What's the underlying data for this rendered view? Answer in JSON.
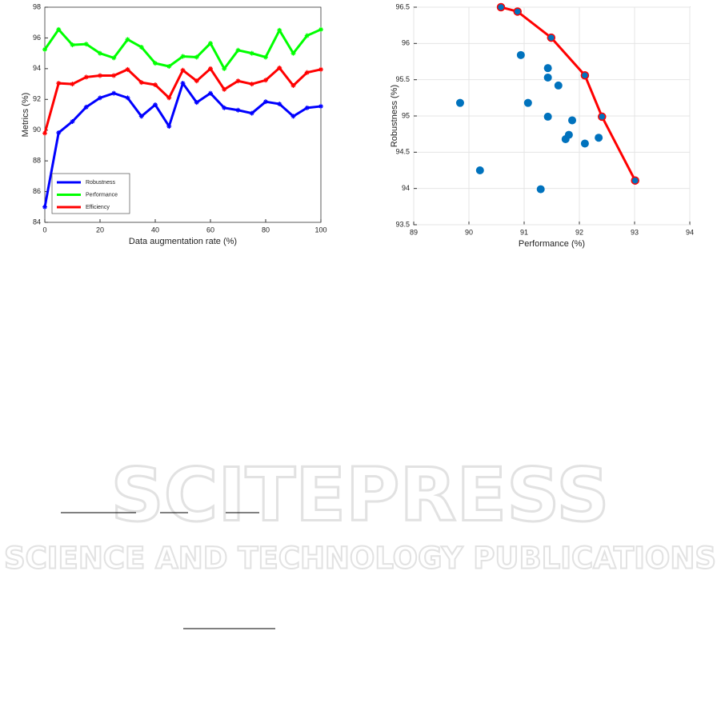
{
  "chart_data": [
    {
      "type": "line",
      "x": [
        0,
        5,
        10,
        15,
        20,
        25,
        30,
        35,
        40,
        45,
        50,
        55,
        60,
        65,
        70,
        75,
        80,
        85,
        90,
        95,
        100
      ],
      "series": [
        {
          "name": "Robustness",
          "color": "#0000ff",
          "values": [
            85.0,
            89.83,
            90.56,
            91.5,
            92.1,
            92.4,
            92.1,
            90.9,
            91.65,
            90.25,
            93.05,
            91.8,
            92.4,
            91.45,
            91.3,
            91.1,
            91.85,
            91.7,
            90.9,
            91.45,
            91.55
          ]
        },
        {
          "name": "Performance",
          "color": "#00ff00",
          "values": [
            95.25,
            96.55,
            95.55,
            95.6,
            95.0,
            94.7,
            95.9,
            95.4,
            94.35,
            94.15,
            94.8,
            94.75,
            95.65,
            94.0,
            95.2,
            95.0,
            94.75,
            96.5,
            95.0,
            96.15,
            96.55
          ]
        },
        {
          "name": "Efficiency",
          "color": "#ff0000",
          "values": [
            89.8,
            93.05,
            93.0,
            93.45,
            93.55,
            93.55,
            93.95,
            93.1,
            92.95,
            92.1,
            93.9,
            93.2,
            94.0,
            92.65,
            93.2,
            93.0,
            93.25,
            94.05,
            92.9,
            93.75,
            93.95
          ]
        }
      ],
      "xlim": [
        0,
        100
      ],
      "xticks": [
        0,
        20,
        40,
        60,
        80,
        100
      ],
      "ylim": [
        84,
        98
      ],
      "yticks": [
        84,
        86,
        88,
        90,
        92,
        94,
        96,
        98
      ],
      "xlabel": "Data augmentation rate (%)",
      "ylabel": "Metrics (%)",
      "legend": "lower left",
      "grid": false
    },
    {
      "type": "scatter",
      "x": [
        90.58,
        90.88,
        91.49,
        90.94,
        91.43,
        91.43,
        91.62,
        89.84,
        91.07,
        91.43,
        92.1,
        92.41,
        91.87,
        91.81,
        91.75,
        92.1,
        92.35,
        90.2,
        91.3,
        93.01
      ],
      "y": [
        96.5,
        96.44,
        96.08,
        95.84,
        95.66,
        95.53,
        95.42,
        95.18,
        95.18,
        94.99,
        95.56,
        94.99,
        94.94,
        94.74,
        94.68,
        94.62,
        94.7,
        94.25,
        93.99,
        94.11
      ],
      "color": "#0072bd",
      "line": {
        "x": [
          90.58,
          90.88,
          91.49,
          92.1,
          92.41,
          93.01
        ],
        "y": [
          96.5,
          96.44,
          96.08,
          95.56,
          94.99,
          94.11
        ],
        "color": "#ff0000"
      },
      "xlim": [
        89,
        94
      ],
      "xticks": [
        89,
        90,
        91,
        92,
        93,
        94
      ],
      "ylim": [
        93.5,
        96.5
      ],
      "yticks": [
        93.5,
        94,
        94.5,
        95,
        95.5,
        96,
        96.5
      ],
      "xlabel": "Performance (%)",
      "ylabel": "Robustness (%)",
      "grid": true
    }
  ],
  "watermark": {
    "title": "SCITEPRESS",
    "subtitle": "SCIENCE AND TECHNOLOGY PUBLICATIONS"
  }
}
